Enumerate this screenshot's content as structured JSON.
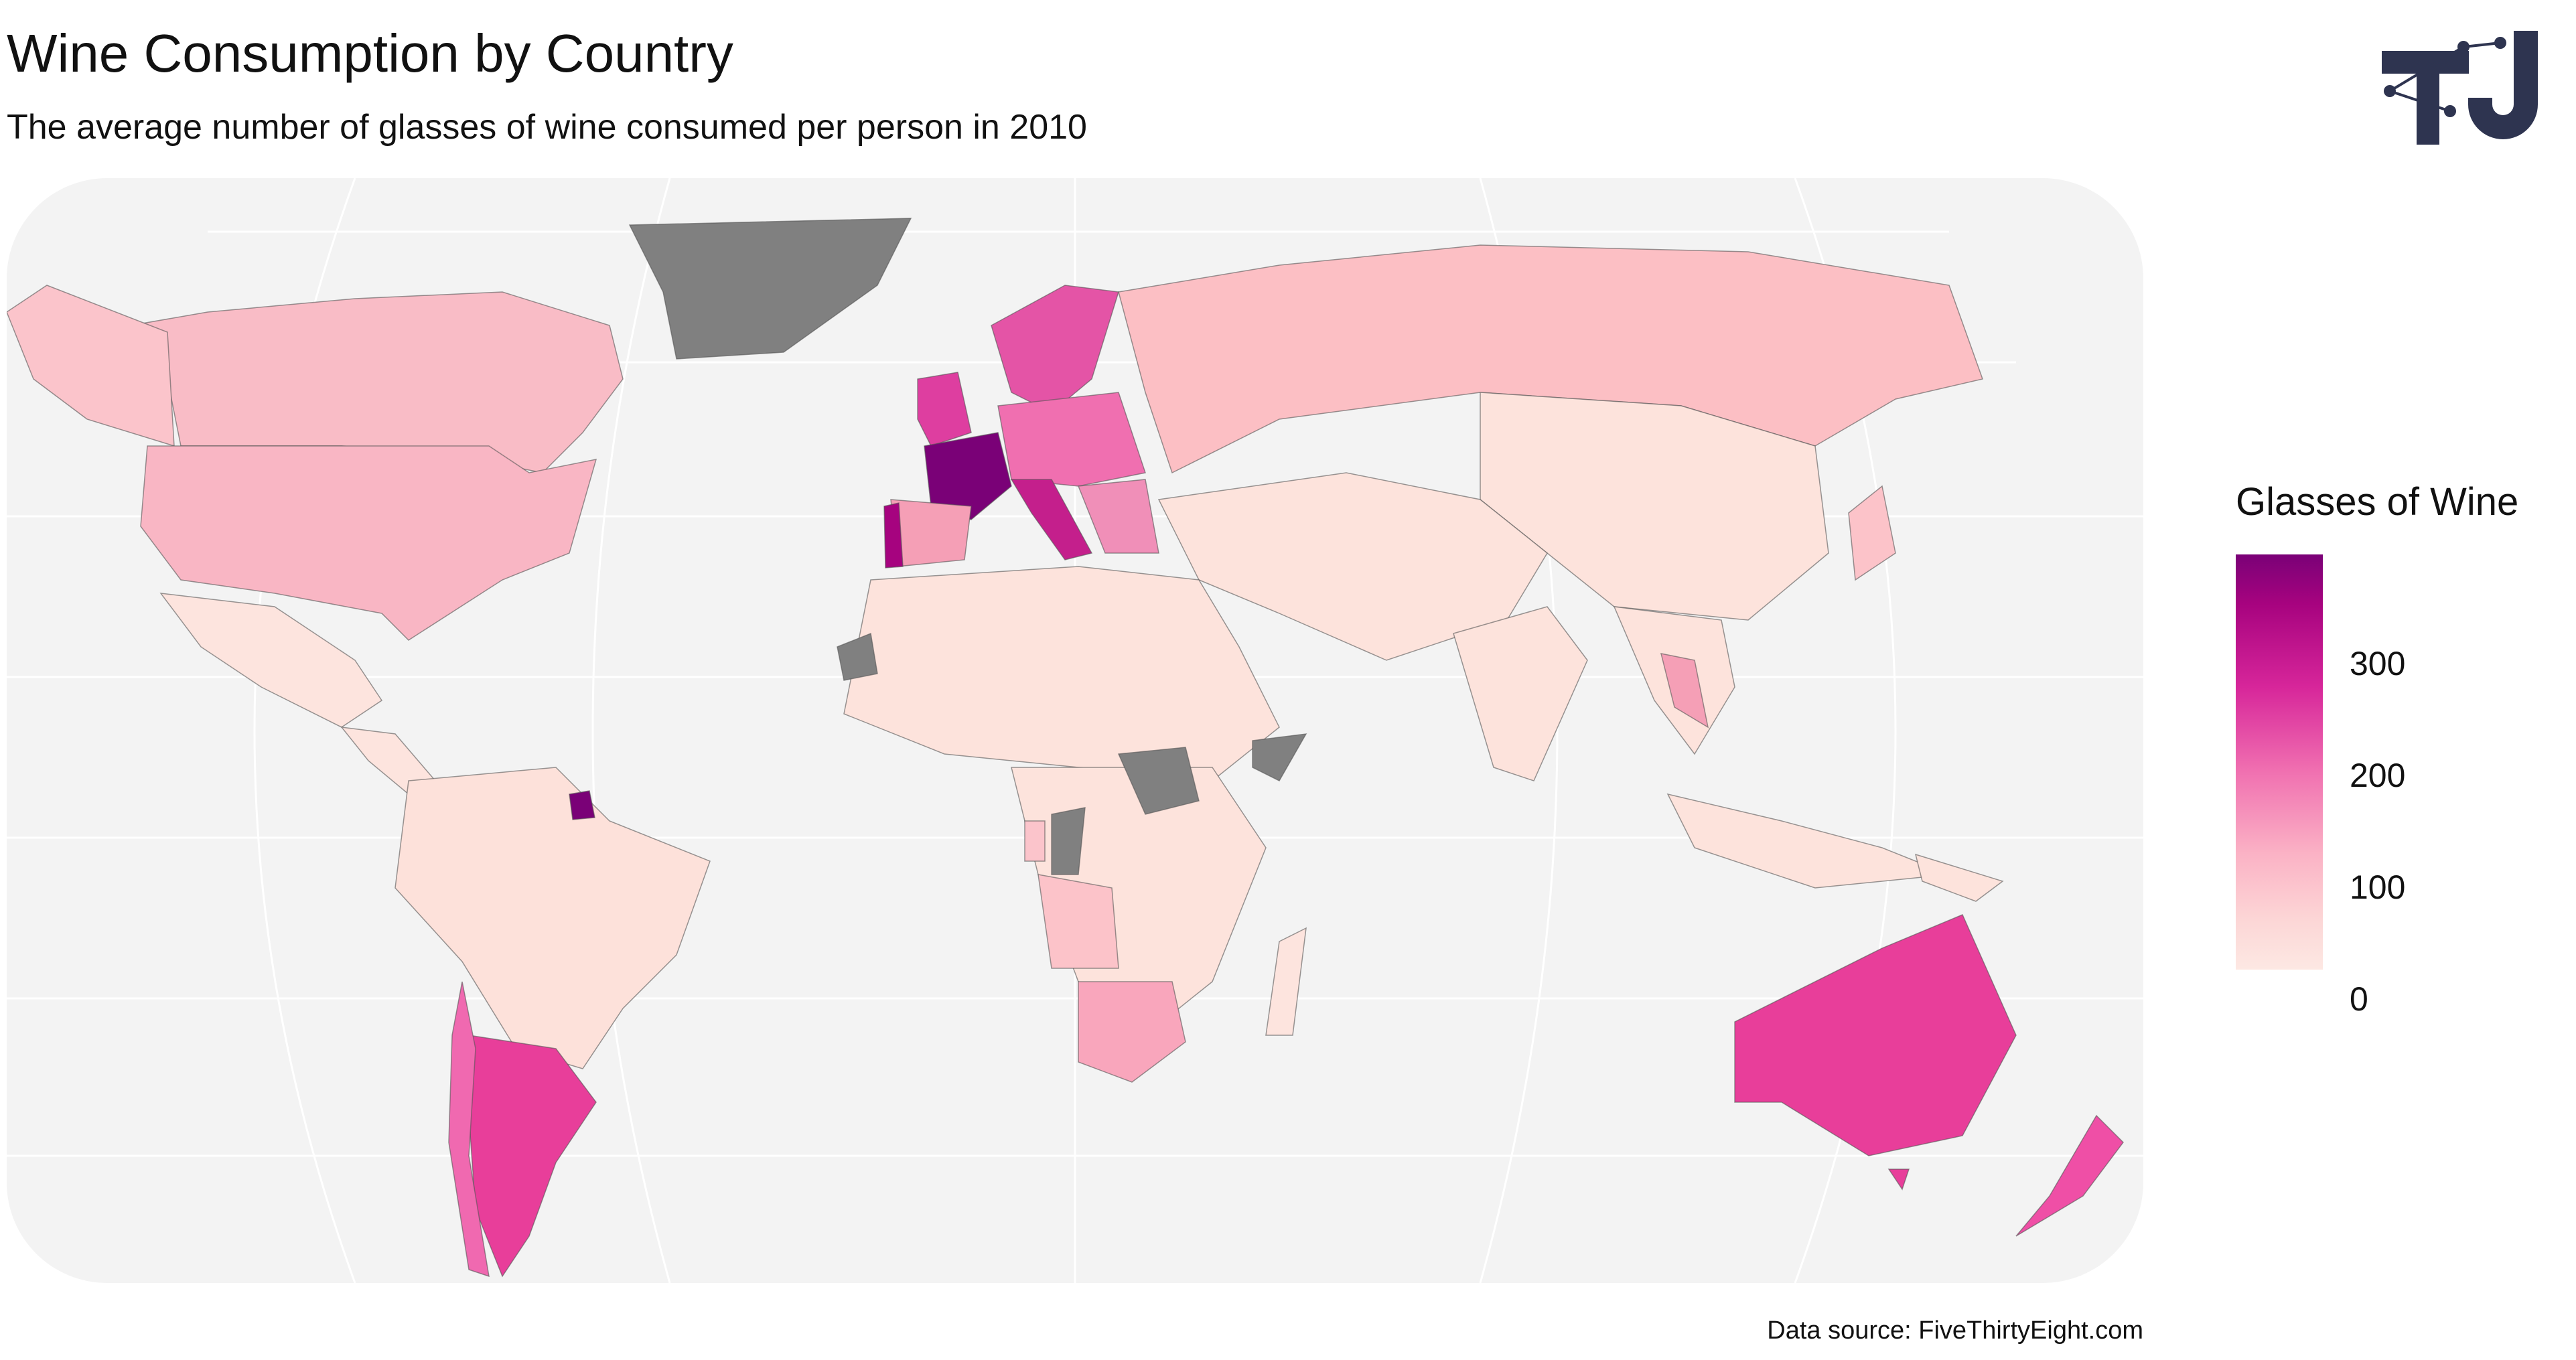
{
  "title": "Wine Consumption by Country",
  "subtitle": "The average number of glasses of wine consumed per person in 2010",
  "source": "Data source: FiveThirtyEight.com",
  "legend": {
    "title": "Glasses of Wine",
    "ticks": [
      "300",
      "200",
      "100",
      "0"
    ]
  },
  "colors": {
    "ocean": "#f3f3f3",
    "no_data": "#808080",
    "low": "#fde8e3",
    "mid": "#fbb2c5",
    "high": "#e83e9a",
    "max": "#7a0177",
    "logo": "#2e3450"
  },
  "chart_data": {
    "type": "choropleth",
    "value_range": [
      0,
      370
    ],
    "regions": [
      {
        "name": "France",
        "value": 370
      },
      {
        "name": "Portugal",
        "value": 339
      },
      {
        "name": "Italy",
        "value": 237
      },
      {
        "name": "Argentina",
        "value": 221
      },
      {
        "name": "Australia",
        "value": 212
      },
      {
        "name": "New Zealand",
        "value": 175
      },
      {
        "name": "United Kingdom",
        "value": 195
      },
      {
        "name": "Sweden",
        "value": 186
      },
      {
        "name": "Germany",
        "value": 175
      },
      {
        "name": "Spain",
        "value": 112
      },
      {
        "name": "Chile",
        "value": 172
      },
      {
        "name": "South Africa",
        "value": 81
      },
      {
        "name": "United States",
        "value": 84
      },
      {
        "name": "Canada",
        "value": 100
      },
      {
        "name": "Russia",
        "value": 73
      },
      {
        "name": "China",
        "value": 8
      },
      {
        "name": "India",
        "value": 0
      },
      {
        "name": "Brazil",
        "value": 16
      },
      {
        "name": "Mexico",
        "value": 5
      },
      {
        "name": "Greenland",
        "value": null
      },
      {
        "name": "South Sudan",
        "value": null
      },
      {
        "name": "Somalia",
        "value": null
      }
    ]
  }
}
